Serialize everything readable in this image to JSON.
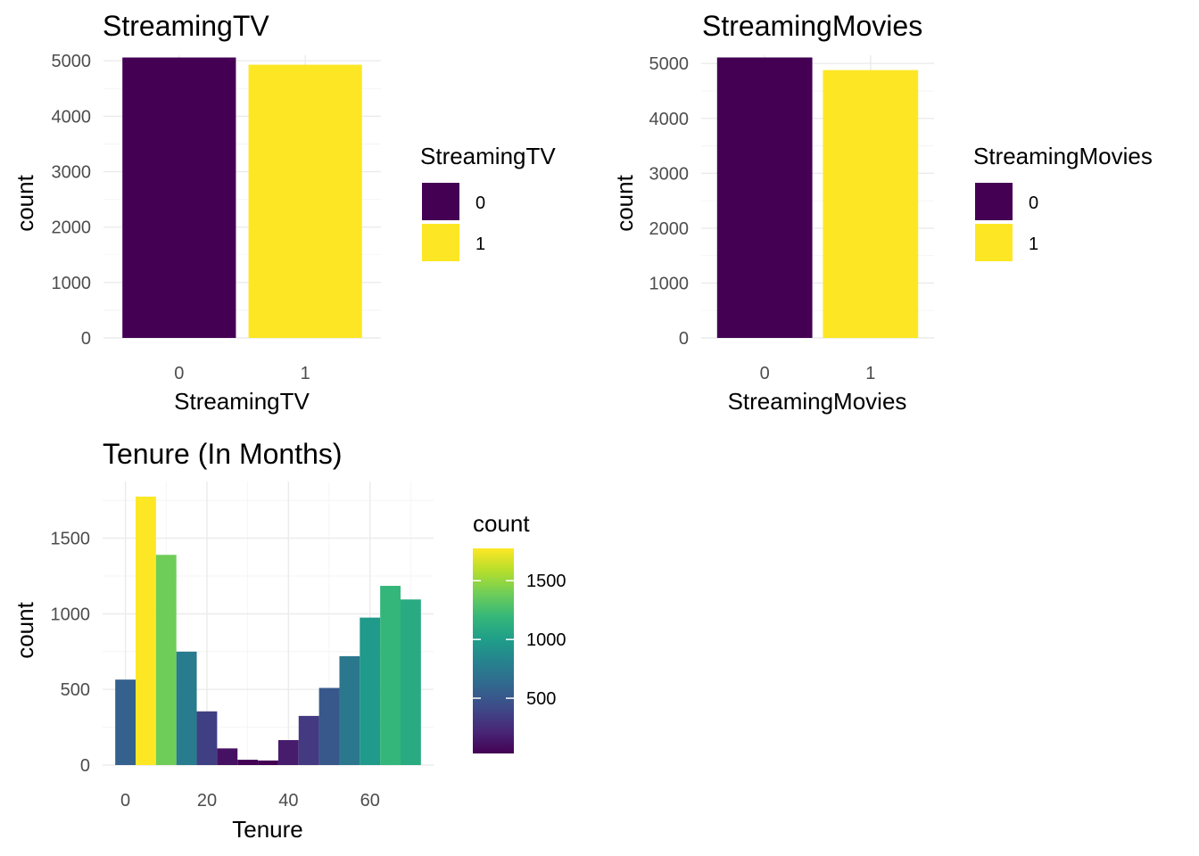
{
  "chart_data": [
    {
      "type": "bar",
      "title": "StreamingTV",
      "xlabel": "StreamingTV",
      "ylabel": "count",
      "categories": [
        "0",
        "1"
      ],
      "values": [
        5060,
        4930
      ],
      "colors": [
        "#440154",
        "#FDE725"
      ],
      "ylim": [
        0,
        5100
      ],
      "yticks": [
        0,
        1000,
        2000,
        3000,
        4000,
        5000
      ],
      "grid": true,
      "legend": {
        "title": "StreamingTV",
        "position": "right",
        "items": [
          {
            "label": "0",
            "color": "#440154"
          },
          {
            "label": "1",
            "color": "#FDE725"
          }
        ]
      }
    },
    {
      "type": "bar",
      "title": "StreamingMovies",
      "xlabel": "StreamingMovies",
      "ylabel": "count",
      "categories": [
        "0",
        "1"
      ],
      "values": [
        5110,
        4880
      ],
      "colors": [
        "#440154",
        "#FDE725"
      ],
      "ylim": [
        0,
        5150
      ],
      "yticks": [
        0,
        1000,
        2000,
        3000,
        4000,
        5000
      ],
      "grid": true,
      "legend": {
        "title": "StreamingMovies",
        "position": "right",
        "items": [
          {
            "label": "0",
            "color": "#440154"
          },
          {
            "label": "1",
            "color": "#FDE725"
          }
        ]
      }
    },
    {
      "type": "bar",
      "subtype": "histogram",
      "title": "Tenure (In Months)",
      "xlabel": "Tenure",
      "ylabel": "count",
      "bins": [
        {
          "x0": -2.5,
          "x1": 2.5,
          "count": 565
        },
        {
          "x0": 2.5,
          "x1": 7.5,
          "count": 1775
        },
        {
          "x0": 7.5,
          "x1": 12.5,
          "count": 1390
        },
        {
          "x0": 12.5,
          "x1": 17.5,
          "count": 750
        },
        {
          "x0": 17.5,
          "x1": 22.5,
          "count": 355
        },
        {
          "x0": 22.5,
          "x1": 27.5,
          "count": 110
        },
        {
          "x0": 27.5,
          "x1": 32.5,
          "count": 35
        },
        {
          "x0": 32.5,
          "x1": 37.5,
          "count": 30
        },
        {
          "x0": 37.5,
          "x1": 42.5,
          "count": 165
        },
        {
          "x0": 42.5,
          "x1": 47.5,
          "count": 325
        },
        {
          "x0": 47.5,
          "x1": 52.5,
          "count": 510
        },
        {
          "x0": 52.5,
          "x1": 57.5,
          "count": 720
        },
        {
          "x0": 57.5,
          "x1": 62.5,
          "count": 975
        },
        {
          "x0": 62.5,
          "x1": 67.5,
          "count": 1185
        },
        {
          "x0": 67.5,
          "x1": 72.5,
          "count": 1095
        }
      ],
      "xlim": [
        -5.6,
        75.6
      ],
      "ylim": [
        0,
        1875
      ],
      "xticks": [
        0,
        20,
        40,
        60
      ],
      "yticks": [
        0,
        500,
        1000,
        1500
      ],
      "grid": true,
      "legend": {
        "title": "count",
        "position": "right",
        "type": "colorbar",
        "range": [
          30,
          1775
        ],
        "ticks": [
          500,
          1000,
          1500
        ],
        "palette": [
          "#440154",
          "#482878",
          "#3E4A89",
          "#31688E",
          "#26828E",
          "#1F9E89",
          "#35B779",
          "#6DCD59",
          "#B4DE2C",
          "#FDE725"
        ]
      }
    }
  ]
}
